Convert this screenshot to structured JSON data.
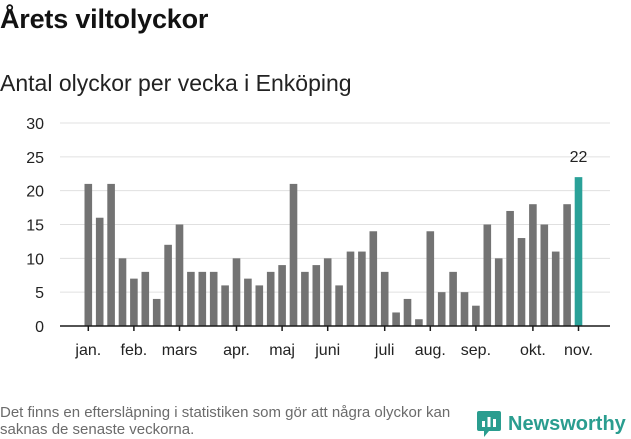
{
  "title": "Årets viltolyckor",
  "subtitle": "Antal olyckor per vecka i Enköping",
  "footnote": "Det finns en eftersläpning i statistiken som gör att några olyckor kan saknas de senaste veckorna.",
  "brand": "Newsworthy",
  "colors": {
    "bar": "#737373",
    "highlight": "#2aa198",
    "grid": "#e0e0e0",
    "axis": "#1a1a1a",
    "brand": "#2a9d8f"
  },
  "chart_data": {
    "type": "bar",
    "title": "Antal olyckor per vecka i Enköping",
    "xlabel": "",
    "ylabel": "",
    "ylim": [
      0,
      30
    ],
    "yticks": [
      0,
      5,
      10,
      15,
      20,
      25,
      30
    ],
    "grid": true,
    "weeks": [
      1,
      2,
      3,
      4,
      5,
      6,
      7,
      8,
      9,
      10,
      11,
      12,
      13,
      14,
      15,
      16,
      17,
      18,
      19,
      20,
      21,
      22,
      23,
      24,
      25,
      26,
      27,
      28,
      29,
      30,
      31,
      32,
      33,
      34,
      35,
      36,
      37,
      38,
      39,
      40,
      41,
      42,
      43,
      44
    ],
    "values": [
      21,
      16,
      21,
      10,
      7,
      8,
      4,
      12,
      15,
      8,
      8,
      8,
      6,
      10,
      7,
      6,
      8,
      9,
      21,
      8,
      9,
      10,
      6,
      11,
      11,
      14,
      8,
      2,
      4,
      1,
      14,
      5,
      8,
      5,
      3,
      15,
      10,
      17,
      13,
      18,
      15,
      11,
      18,
      22
    ],
    "highlight_index": 43,
    "highlight_label": "22",
    "month_labels": [
      {
        "label": "jan.",
        "week": 1
      },
      {
        "label": "feb.",
        "week": 5
      },
      {
        "label": "mars",
        "week": 9
      },
      {
        "label": "apr.",
        "week": 14
      },
      {
        "label": "maj",
        "week": 18
      },
      {
        "label": "juni",
        "week": 22
      },
      {
        "label": "juli",
        "week": 27
      },
      {
        "label": "aug.",
        "week": 31
      },
      {
        "label": "sep.",
        "week": 35
      },
      {
        "label": "okt.",
        "week": 40
      },
      {
        "label": "nov.",
        "week": 44
      }
    ]
  }
}
